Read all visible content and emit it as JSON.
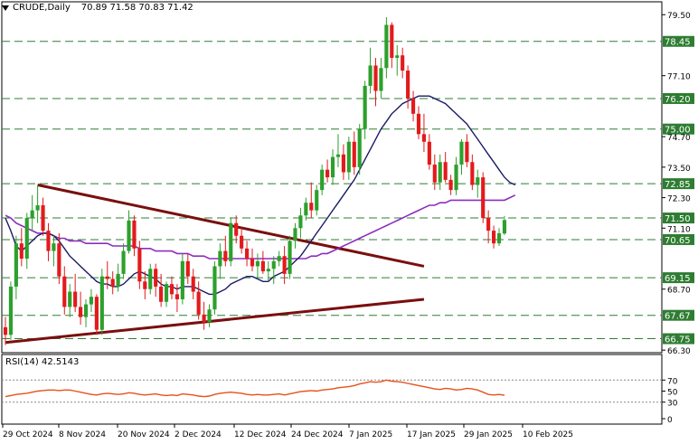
{
  "header": {
    "symbol": "CRUDE,Daily",
    "ohlc": "70.89 71.58 70.83 71.42"
  },
  "rsi_header": "RSI(14) 42.5143",
  "colors": {
    "bull": "#2ca02c",
    "bear": "#e31a1c",
    "sma_fast": "#1a1a66",
    "sma_slow": "#8e2dbf",
    "trendline": "#7a0f0f",
    "level_line": "#2e7d32",
    "rsi_line": "#e8501a",
    "rsi_levels": "#888888"
  },
  "chart_data": [
    {
      "type": "candlestick",
      "title": "CRUDE,Daily",
      "ylim": [
        66.2,
        79.9
      ],
      "y_ticks": [
        79.5,
        77.1,
        74.7,
        73.5,
        72.3,
        71.1,
        68.7,
        66.3
      ],
      "x_ticks": [
        "29 Oct 2024",
        "8 Nov 2024",
        "20 Nov 2024",
        "2 Dec 2024",
        "12 Dec 2024",
        "24 Dec 2024",
        "7 Jan 2025",
        "17 Jan 2025",
        "29 Jan 2025",
        "10 Feb 2025"
      ],
      "candles": [
        [
          67.2,
          67.6,
          66.5,
          66.9
        ],
        [
          66.9,
          69.0,
          66.7,
          68.8
        ],
        [
          68.8,
          70.8,
          68.3,
          70.5
        ],
        [
          70.5,
          71.1,
          69.6,
          69.9
        ],
        [
          69.9,
          71.7,
          69.5,
          71.5
        ],
        [
          71.5,
          72.4,
          71.0,
          71.8
        ],
        [
          71.8,
          72.8,
          71.3,
          72.0
        ],
        [
          72.0,
          72.3,
          70.8,
          71.0
        ],
        [
          71.0,
          71.3,
          69.8,
          70.2
        ],
        [
          70.2,
          70.8,
          69.6,
          70.5
        ],
        [
          70.5,
          70.9,
          68.9,
          69.2
        ],
        [
          69.2,
          69.6,
          67.7,
          68.0
        ],
        [
          68.0,
          68.9,
          67.6,
          68.6
        ],
        [
          68.6,
          69.3,
          67.8,
          68.0
        ],
        [
          68.0,
          68.6,
          67.3,
          67.6
        ],
        [
          67.6,
          68.3,
          67.2,
          68.1
        ],
        [
          68.1,
          68.7,
          67.8,
          68.4
        ],
        [
          68.4,
          68.5,
          66.9,
          67.1
        ],
        [
          67.1,
          69.5,
          66.9,
          69.2
        ],
        [
          69.2,
          69.8,
          68.7,
          69.1
        ],
        [
          69.1,
          69.4,
          68.5,
          68.8
        ],
        [
          68.8,
          69.7,
          68.6,
          69.3
        ],
        [
          69.3,
          70.5,
          69.1,
          70.2
        ],
        [
          70.2,
          71.8,
          70.1,
          71.4
        ],
        [
          71.4,
          71.6,
          70.0,
          70.3
        ],
        [
          70.3,
          70.6,
          68.7,
          69.0
        ],
        [
          69.0,
          69.4,
          68.3,
          68.7
        ],
        [
          68.7,
          69.7,
          68.5,
          69.5
        ],
        [
          69.5,
          69.7,
          68.4,
          68.8
        ],
        [
          68.8,
          69.3,
          68.0,
          68.2
        ],
        [
          68.2,
          69.0,
          68.0,
          68.9
        ],
        [
          68.9,
          69.2,
          68.3,
          68.5
        ],
        [
          68.5,
          68.9,
          67.8,
          68.3
        ],
        [
          68.3,
          70.1,
          68.1,
          69.8
        ],
        [
          69.8,
          70.1,
          68.9,
          69.2
        ],
        [
          69.2,
          69.5,
          68.3,
          68.6
        ],
        [
          68.6,
          69.0,
          67.5,
          67.7
        ],
        [
          67.7,
          68.2,
          67.1,
          67.4
        ],
        [
          67.4,
          68.1,
          67.2,
          67.9
        ],
        [
          67.9,
          69.8,
          67.7,
          69.6
        ],
        [
          69.6,
          70.5,
          69.1,
          70.2
        ],
        [
          70.2,
          70.8,
          69.6,
          69.8
        ],
        [
          69.8,
          71.5,
          69.6,
          71.3
        ],
        [
          71.3,
          71.6,
          70.5,
          70.8
        ],
        [
          70.8,
          71.1,
          70.1,
          70.3
        ],
        [
          70.3,
          70.6,
          69.6,
          69.9
        ],
        [
          69.9,
          70.3,
          69.4,
          69.6
        ],
        [
          69.6,
          70.1,
          69.1,
          69.8
        ],
        [
          69.8,
          70.2,
          69.3,
          69.4
        ],
        [
          69.4,
          69.8,
          69.0,
          69.5
        ],
        [
          69.5,
          70.0,
          68.9,
          69.8
        ],
        [
          69.8,
          70.2,
          69.6,
          70.0
        ],
        [
          70.0,
          70.4,
          68.9,
          69.3
        ],
        [
          69.3,
          70.8,
          69.1,
          70.6
        ],
        [
          70.6,
          71.3,
          70.3,
          71.1
        ],
        [
          71.1,
          71.9,
          70.7,
          71.6
        ],
        [
          71.6,
          72.3,
          71.4,
          72.1
        ],
        [
          72.1,
          72.9,
          71.5,
          71.8
        ],
        [
          71.8,
          72.8,
          71.6,
          72.6
        ],
        [
          72.6,
          73.6,
          72.4,
          73.4
        ],
        [
          73.4,
          73.8,
          72.9,
          73.1
        ],
        [
          73.1,
          74.2,
          72.8,
          73.9
        ],
        [
          73.9,
          74.8,
          73.5,
          74.0
        ],
        [
          74.0,
          74.4,
          73.0,
          73.3
        ],
        [
          73.3,
          74.7,
          73.0,
          74.5
        ],
        [
          74.5,
          74.9,
          73.2,
          73.5
        ],
        [
          73.5,
          75.2,
          73.2,
          75.0
        ],
        [
          75.0,
          76.9,
          74.6,
          76.7
        ],
        [
          76.7,
          78.2,
          76.4,
          77.5
        ],
        [
          77.5,
          77.8,
          75.9,
          76.5
        ],
        [
          76.5,
          77.8,
          76.2,
          77.4
        ],
        [
          77.4,
          79.4,
          77.0,
          79.1
        ],
        [
          79.1,
          79.2,
          77.4,
          77.8
        ],
        [
          77.8,
          78.3,
          77.1,
          77.9
        ],
        [
          77.9,
          78.2,
          77.0,
          77.3
        ],
        [
          77.3,
          77.5,
          75.8,
          76.2
        ],
        [
          76.2,
          76.5,
          75.3,
          75.6
        ],
        [
          75.6,
          75.9,
          74.6,
          74.8
        ],
        [
          74.8,
          75.6,
          74.1,
          74.5
        ],
        [
          74.5,
          74.8,
          73.4,
          73.6
        ],
        [
          73.6,
          74.0,
          72.6,
          72.9
        ],
        [
          72.9,
          74.0,
          72.6,
          73.7
        ],
        [
          73.7,
          74.1,
          72.9,
          73.0
        ],
        [
          73.0,
          73.2,
          72.4,
          72.6
        ],
        [
          72.6,
          73.9,
          72.4,
          73.6
        ],
        [
          73.6,
          74.6,
          73.2,
          74.5
        ],
        [
          74.5,
          74.8,
          73.5,
          73.7
        ],
        [
          73.7,
          74.0,
          72.6,
          72.8
        ],
        [
          72.8,
          73.4,
          72.3,
          73.1
        ],
        [
          73.1,
          73.3,
          71.3,
          71.5
        ],
        [
          71.5,
          71.8,
          70.5,
          71.0
        ],
        [
          71.0,
          71.2,
          70.3,
          70.5
        ],
        [
          70.5,
          71.1,
          70.4,
          70.9
        ],
        [
          70.89,
          71.58,
          70.83,
          71.42
        ]
      ],
      "sma_fast": [
        71.5,
        71.0,
        70.4,
        70.2,
        70.4,
        70.6,
        70.8,
        70.9,
        70.9,
        70.8,
        70.6,
        70.3,
        70.0,
        69.8,
        69.6,
        69.4,
        69.2,
        69.0,
        68.9,
        68.9,
        68.8,
        68.8,
        68.9,
        69.1,
        69.3,
        69.4,
        69.3,
        69.2,
        69.1,
        68.9,
        68.8,
        68.8,
        68.7,
        68.8,
        68.8,
        68.8,
        68.7,
        68.6,
        68.5,
        68.5,
        68.6,
        68.7,
        68.9,
        69.0,
        69.1,
        69.2,
        69.2,
        69.1,
        69.0,
        69.0,
        69.2,
        69.3,
        69.4,
        69.6,
        69.8,
        70.0,
        70.3,
        70.6,
        70.9,
        71.2,
        71.5,
        71.8,
        72.1,
        72.4,
        72.7,
        73.0,
        73.4,
        73.8,
        74.2,
        74.6,
        75.0,
        75.3,
        75.6,
        75.8,
        76.0,
        76.1,
        76.2,
        76.3,
        76.3,
        76.3,
        76.2,
        76.1,
        76.0,
        75.8,
        75.6,
        75.4,
        75.2,
        74.9,
        74.6,
        74.3,
        74.0,
        73.7,
        73.4,
        73.1,
        72.9,
        72.8
      ],
      "sma_slow": [
        71.6,
        71.5,
        71.3,
        71.2,
        71.1,
        71.0,
        70.9,
        70.9,
        70.9,
        70.8,
        70.7,
        70.7,
        70.6,
        70.6,
        70.6,
        70.5,
        70.5,
        70.5,
        70.5,
        70.5,
        70.4,
        70.4,
        70.4,
        70.4,
        70.4,
        70.3,
        70.3,
        70.3,
        70.2,
        70.2,
        70.2,
        70.2,
        70.1,
        70.1,
        70.1,
        70.0,
        70.0,
        70.0,
        69.9,
        69.9,
        69.9,
        69.9,
        69.9,
        69.9,
        69.9,
        69.9,
        69.9,
        69.9,
        69.9,
        69.9,
        69.9,
        69.9,
        69.9,
        69.9,
        69.9,
        69.9,
        69.9,
        70.0,
        70.0,
        70.1,
        70.1,
        70.2,
        70.3,
        70.4,
        70.5,
        70.6,
        70.7,
        70.8,
        70.9,
        71.0,
        71.1,
        71.2,
        71.3,
        71.4,
        71.5,
        71.6,
        71.7,
        71.8,
        71.9,
        72.0,
        72.0,
        72.1,
        72.1,
        72.2,
        72.2,
        72.2,
        72.2,
        72.2,
        72.2,
        72.2,
        72.2,
        72.2,
        72.2,
        72.2,
        72.3,
        72.4
      ],
      "level_lines": [
        {
          "value": 78.45,
          "label": "78.45"
        },
        {
          "value": 76.2,
          "label": "76.20"
        },
        {
          "value": 75.0,
          "label": "75.00"
        },
        {
          "value": 72.85,
          "label": "72.85"
        },
        {
          "value": 71.5,
          "label": "71.50"
        },
        {
          "value": 70.65,
          "label": "70.65"
        },
        {
          "value": 69.15,
          "label": "69.15"
        },
        {
          "value": 67.67,
          "label": "67.67"
        },
        {
          "value": 66.75,
          "label": "66.75"
        }
      ],
      "trendlines": [
        {
          "from": [
            6,
            72.8
          ],
          "to": [
            78,
            69.6
          ]
        },
        {
          "from": [
            0,
            66.6
          ],
          "to": [
            78,
            68.3
          ]
        }
      ]
    },
    {
      "type": "line",
      "title": "RSI(14) 42.5143",
      "ylim": [
        0,
        100
      ],
      "y_ticks": [
        70,
        50,
        30,
        0
      ],
      "levels": [
        70,
        30
      ],
      "values": [
        40,
        42,
        44,
        45,
        46,
        48,
        50,
        51,
        52,
        52,
        51,
        52,
        52,
        50,
        48,
        46,
        44,
        43,
        45,
        46,
        45,
        44,
        45,
        47,
        46,
        44,
        43,
        44,
        45,
        43,
        42,
        43,
        42,
        45,
        44,
        43,
        41,
        40,
        41,
        44,
        46,
        47,
        48,
        47,
        46,
        44,
        43,
        44,
        43,
        43,
        44,
        45,
        43,
        45,
        47,
        49,
        50,
        51,
        50,
        52,
        53,
        54,
        56,
        57,
        58,
        60,
        63,
        65,
        67,
        66,
        67,
        70,
        68,
        67,
        66,
        64,
        62,
        60,
        58,
        56,
        54,
        53,
        55,
        54,
        52,
        53,
        55,
        54,
        52,
        48,
        44,
        43,
        44,
        42.5143
      ]
    }
  ]
}
